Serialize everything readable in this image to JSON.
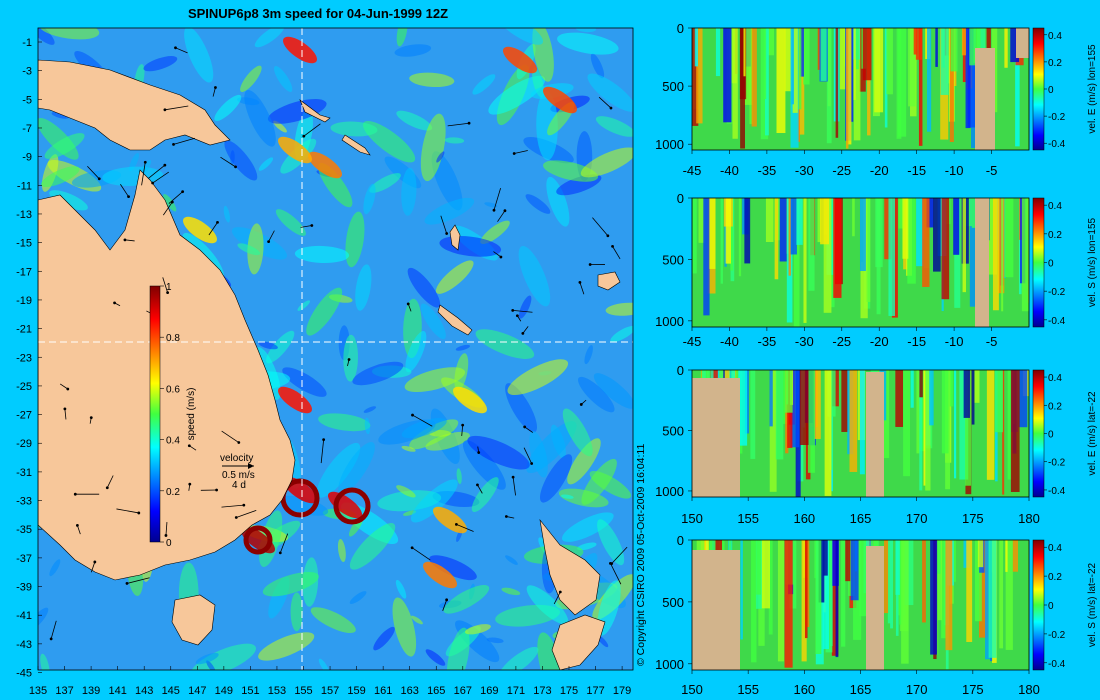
{
  "title": "SPINUP6p8 3m speed for 04-Jun-1999 12Z",
  "copyright": "© Copyright CSIRO 2009   05-Oct-2009 16:04:11",
  "colors": {
    "background": "#00ccff",
    "land": "#f7c79a",
    "section_land": "#d2b48c",
    "grid_line": "#ffffff",
    "vector": "#000000"
  },
  "chart_data": [
    {
      "type": "heatmap",
      "name": "map",
      "title": "SPINUP6p8 3m speed for 04-Jun-1999 12Z",
      "x_ticks": [
        "135",
        "137",
        "139",
        "141",
        "143",
        "145",
        "147",
        "149",
        "151",
        "153",
        "155",
        "157",
        "159",
        "161",
        "163",
        "165",
        "167",
        "169",
        "171",
        "173",
        "175",
        "177",
        "179"
      ],
      "y_ticks": [
        "-1",
        "-3",
        "-5",
        "-7",
        "-9",
        "-11",
        "-13",
        "-15",
        "-17",
        "-19",
        "-21",
        "-23",
        "-25",
        "-27",
        "-29",
        "-31",
        "-33",
        "-35",
        "-37",
        "-39",
        "-41",
        "-43",
        "-45"
      ],
      "xlim": [
        135,
        180
      ],
      "ylim": [
        -45,
        0
      ],
      "section_lines": {
        "lon": 155,
        "lat": -22
      },
      "colorbar": {
        "label": "speed (m/s)",
        "ticks": [
          "0",
          "0.2",
          "0.4",
          "0.6",
          "0.8",
          "1"
        ],
        "min": 0,
        "max": 1
      },
      "vector_key": {
        "label": "velocity",
        "speed": "0.5 m/s",
        "time": "4 d"
      }
    },
    {
      "type": "heatmap",
      "name": "section-east-lon155",
      "xlabel_ticks": [
        "-45",
        "-40",
        "-35",
        "-30",
        "-25",
        "-20",
        "-15",
        "-10",
        "-5"
      ],
      "y_ticks": [
        "0",
        "500",
        "1000"
      ],
      "xlim": [
        -45,
        0
      ],
      "ylim": [
        1050,
        0
      ],
      "colorbar": {
        "label": "vel. E (m/s) lon=155",
        "ticks": [
          "0.4",
          "0.2",
          "0",
          "-0.2",
          "-0.4"
        ],
        "min": -0.45,
        "max": 0.45
      }
    },
    {
      "type": "heatmap",
      "name": "section-south-lon155",
      "xlabel_ticks": [
        "-45",
        "-40",
        "-35",
        "-30",
        "-25",
        "-20",
        "-15",
        "-10",
        "-5"
      ],
      "y_ticks": [
        "0",
        "500",
        "1000"
      ],
      "xlim": [
        -45,
        0
      ],
      "ylim": [
        1050,
        0
      ],
      "colorbar": {
        "label": "vel. S (m/s) lon=155",
        "ticks": [
          "0.4",
          "0.2",
          "0",
          "-0.2",
          "-0.4"
        ],
        "min": -0.45,
        "max": 0.45
      }
    },
    {
      "type": "heatmap",
      "name": "section-east-lat22",
      "xlabel_ticks": [
        "150",
        "155",
        "160",
        "165",
        "170",
        "175",
        "180"
      ],
      "y_ticks": [
        "0",
        "500",
        "1000"
      ],
      "xlim": [
        150,
        180
      ],
      "ylim": [
        1050,
        0
      ],
      "colorbar": {
        "label": "vel. E (m/s) lat=-22",
        "ticks": [
          "0.4",
          "0.2",
          "0",
          "-0.2",
          "-0.4"
        ],
        "min": -0.45,
        "max": 0.45
      }
    },
    {
      "type": "heatmap",
      "name": "section-south-lat22",
      "xlabel_ticks": [
        "150",
        "155",
        "160",
        "165",
        "170",
        "175",
        "180"
      ],
      "y_ticks": [
        "0",
        "500",
        "1000"
      ],
      "xlim": [
        150,
        180
      ],
      "ylim": [
        1050,
        0
      ],
      "colorbar": {
        "label": "vel. S (m/s) lat=-22",
        "ticks": [
          "0.4",
          "0.2",
          "0",
          "-0.2",
          "-0.4"
        ],
        "min": -0.45,
        "max": 0.45
      }
    }
  ]
}
